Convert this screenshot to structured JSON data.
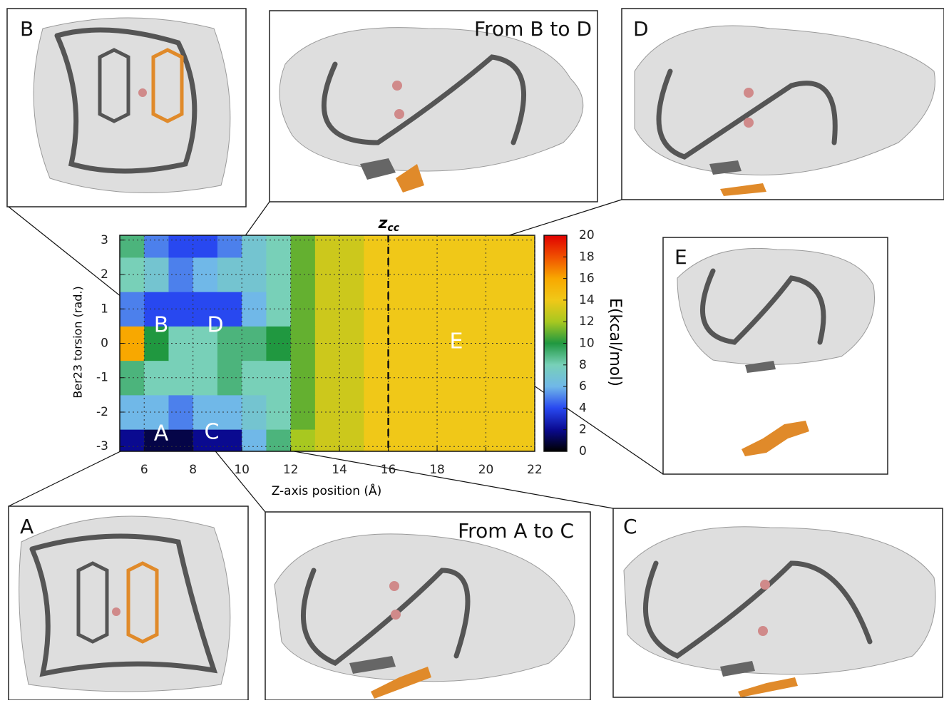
{
  "chart_data": {
    "type": "heatmap",
    "x_label": "Z-axis position (Å)",
    "y_label": "Ber23 torsion (rad.)",
    "colorbar_label": "E(kcal/mol)",
    "xlim": [
      5,
      22
    ],
    "ylim": [
      -3.14,
      3.14
    ],
    "xticks": [
      6,
      8,
      10,
      12,
      14,
      16,
      18,
      20,
      22
    ],
    "yticks": [
      -3,
      -2,
      -1,
      0,
      1,
      2,
      3
    ],
    "zlim": [
      0,
      20
    ],
    "zticks": [
      0,
      2,
      4,
      6,
      8,
      10,
      12,
      14,
      16,
      18,
      20
    ],
    "colorscale": [
      "#000000",
      "#0a0a90",
      "#2848f0",
      "#70b8e8",
      "#78d0b8",
      "#209840",
      "#a8c820",
      "#f0c818",
      "#f8a800",
      "#f05000",
      "#e00000"
    ],
    "grid": true,
    "x_bins": [
      5,
      6,
      7,
      8,
      9,
      10,
      11,
      12,
      13,
      14,
      15,
      16,
      17,
      18,
      19,
      20,
      21,
      22
    ],
    "y_bins": [
      -3.14,
      -2.5,
      -1.5,
      -0.5,
      0.5,
      1.5,
      2.5,
      3.14
    ],
    "z": [
      [
        2,
        1,
        1,
        2,
        2,
        6,
        9,
        12,
        13,
        13,
        14,
        14,
        14,
        14,
        14,
        14,
        14
      ],
      [
        6,
        6,
        5,
        6,
        6,
        7,
        8,
        11,
        13,
        13,
        14,
        14,
        14,
        14,
        14,
        14,
        14
      ],
      [
        9,
        8,
        8,
        8,
        9,
        8,
        8,
        11,
        13,
        13,
        14,
        14,
        14,
        14,
        14,
        14,
        14
      ],
      [
        16,
        10,
        8,
        8,
        9,
        9,
        10,
        11,
        13,
        13,
        14,
        14,
        14,
        14,
        14,
        14,
        14
      ],
      [
        5,
        4,
        4,
        4,
        4,
        6,
        8,
        11,
        13,
        13,
        14,
        14,
        14,
        14,
        14,
        14,
        14
      ],
      [
        8,
        7,
        5,
        6,
        7,
        7,
        8,
        11,
        13,
        13,
        14,
        14,
        14,
        14,
        14,
        14,
        14
      ],
      [
        9,
        5,
        4,
        4,
        5,
        7,
        8,
        11,
        13,
        13,
        14,
        14,
        14,
        14,
        14,
        14,
        14
      ]
    ],
    "vline": {
      "value": 16,
      "label": "z",
      "sub": "cc"
    },
    "annotations": [
      "A",
      "B",
      "C",
      "D",
      "E"
    ]
  },
  "panels": [
    {
      "label": "B"
    },
    {
      "label": "From B to D"
    },
    {
      "label": "D"
    },
    {
      "label": "E"
    },
    {
      "label": "A"
    },
    {
      "label": "From A to C"
    },
    {
      "label": "C"
    }
  ]
}
